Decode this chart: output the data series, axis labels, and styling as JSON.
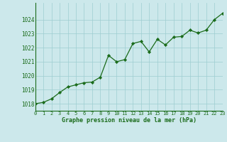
{
  "x": [
    0,
    1,
    2,
    3,
    4,
    5,
    6,
    7,
    8,
    9,
    10,
    11,
    12,
    13,
    14,
    15,
    16,
    17,
    18,
    19,
    20,
    21,
    22,
    23
  ],
  "y": [
    1018.0,
    1018.1,
    1018.35,
    1018.8,
    1019.2,
    1019.35,
    1019.5,
    1019.55,
    1019.9,
    1021.45,
    1021.0,
    1021.15,
    1022.3,
    1022.45,
    1021.7,
    1022.6,
    1022.2,
    1022.75,
    1022.8,
    1023.25,
    1023.05,
    1023.25,
    1024.0,
    1024.45
  ],
  "line_color": "#1a6b1a",
  "marker_color": "#1a6b1a",
  "bg_color": "#cce8eb",
  "grid_color": "#9ecdd1",
  "xlabel": "Graphe pression niveau de la mer (hPa)",
  "xlabel_color": "#1a6b1a",
  "tick_color": "#1a6b1a",
  "ylim": [
    1017.5,
    1025.2
  ],
  "xlim": [
    0,
    23
  ],
  "yticks": [
    1018,
    1019,
    1020,
    1021,
    1022,
    1023,
    1024
  ],
  "xticks": [
    0,
    1,
    2,
    3,
    4,
    5,
    6,
    7,
    8,
    9,
    10,
    11,
    12,
    13,
    14,
    15,
    16,
    17,
    18,
    19,
    20,
    21,
    22,
    23
  ]
}
